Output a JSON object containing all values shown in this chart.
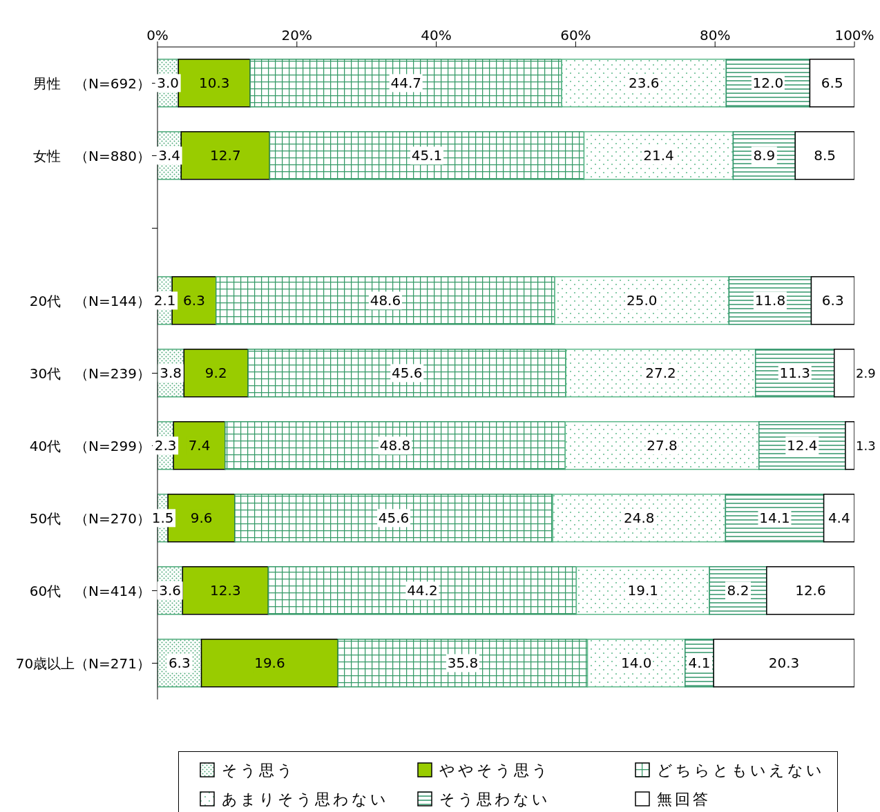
{
  "chart_data": {
    "type": "bar",
    "orientation": "horizontal",
    "stacked": true,
    "categories": [
      "男性　（N=692）",
      "女性　（N=880）",
      null,
      "20代　（N=144）",
      "30代　（N=239）",
      "40代　（N=299）",
      "50代　（N=270）",
      "60代　（N=414）",
      "70歳以上（N=271）"
    ],
    "series": [
      {
        "name": "そう思う",
        "color": "#4daa7a",
        "values": [
          3.0,
          3.4,
          null,
          2.1,
          3.8,
          2.3,
          1.5,
          3.6,
          6.3
        ],
        "value_labels": [
          "3.0",
          "3.4",
          null,
          "2.1",
          "3.8",
          "2.3",
          "1.5",
          "3.6",
          "6.3"
        ]
      },
      {
        "name": "ややそう思う",
        "color": "#99cc00",
        "values": [
          10.3,
          12.7,
          null,
          6.3,
          9.2,
          7.4,
          9.6,
          12.3,
          19.6
        ],
        "value_labels": [
          "10.3",
          "12.7",
          null,
          "6.3",
          "9.2",
          "7.4",
          "9.6",
          "12.3",
          "19.6"
        ]
      },
      {
        "name": "どちらともいえない",
        "color": "#339966",
        "values": [
          44.7,
          45.1,
          null,
          48.6,
          45.6,
          48.8,
          45.6,
          44.2,
          35.8
        ],
        "value_labels": [
          "44.7",
          "45.1",
          null,
          "48.6",
          "45.6",
          "48.8",
          "45.6",
          "44.2",
          "35.8"
        ]
      },
      {
        "name": "あまりそう思わない",
        "color": "#5cb88a",
        "values": [
          23.6,
          21.4,
          null,
          25.0,
          27.2,
          27.8,
          24.8,
          19.1,
          14.0
        ],
        "value_labels": [
          "23.6",
          "21.4",
          null,
          "25.0",
          "27.2",
          "27.8",
          "24.8",
          "19.1",
          "14.0"
        ]
      },
      {
        "name": "そう思わない",
        "color": "#2e9468",
        "values": [
          12.0,
          8.9,
          null,
          11.8,
          11.3,
          12.4,
          14.1,
          8.2,
          4.1
        ],
        "value_labels": [
          "12.0",
          "8.9",
          null,
          "11.8",
          "11.3",
          "12.4",
          "14.1",
          "8.2",
          "4.1"
        ]
      },
      {
        "name": "無回答",
        "color": "#ffffff",
        "values": [
          6.5,
          8.5,
          null,
          6.3,
          2.9,
          1.3,
          4.4,
          12.6,
          20.3
        ],
        "value_labels": [
          "6.5",
          "8.5",
          null,
          "6.3",
          "2.9",
          "1.3",
          "4.4",
          "12.6",
          "20.3"
        ]
      }
    ],
    "xlim": [
      0,
      100
    ],
    "xticks": [
      {
        "value": 0,
        "label": "0%"
      },
      {
        "value": 20,
        "label": "20%"
      },
      {
        "value": 40,
        "label": "40%"
      },
      {
        "value": 60,
        "label": "60%"
      },
      {
        "value": 80,
        "label": "80%"
      },
      {
        "value": 100,
        "label": "100%"
      }
    ],
    "grid": false,
    "legend": "bottom"
  }
}
